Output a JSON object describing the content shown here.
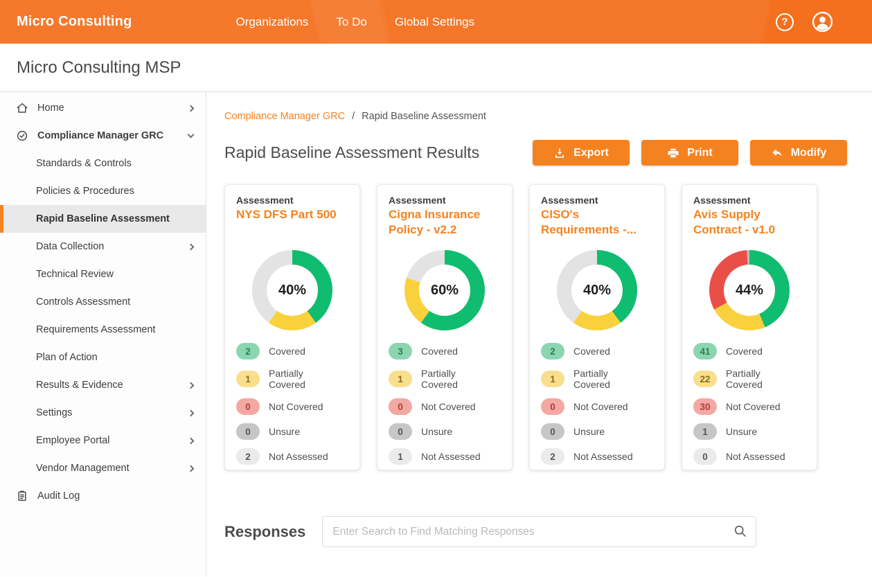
{
  "colors": {
    "topbar_bg": "#F4701E",
    "accent": "#F58220",
    "segment_colors": {
      "covered": "#10BC6F",
      "partially_covered": "#F8D13C",
      "not_covered": "#E94F47",
      "unsure": "#BDBDBD",
      "not_assessed": "#E3E3E3"
    },
    "badge_colors": {
      "covered": {
        "bg": "#8AD6B0",
        "fg": "#2E7D54"
      },
      "partially_covered": {
        "bg": "#F7DF8B",
        "fg": "#8A6D1E"
      },
      "not_covered": {
        "bg": "#F3A8A2",
        "fg": "#AE3F35"
      },
      "unsure": {
        "bg": "#C6C6C6",
        "fg": "#565656"
      },
      "not_assessed": {
        "bg": "#EBEBEB",
        "fg": "#565656"
      }
    }
  },
  "topbar": {
    "brand": "Micro Consulting",
    "help_label": "?",
    "nav": [
      {
        "label": "Organizations"
      },
      {
        "label": "To Do"
      },
      {
        "label": "Global Settings"
      }
    ]
  },
  "header": {
    "title": "Micro Consulting MSP"
  },
  "sidebar": {
    "items": [
      {
        "label": "Home",
        "icon": "home",
        "chevron": "right",
        "level": 0
      },
      {
        "label": "Compliance Manager GRC",
        "icon": "check-circle",
        "chevron": "down",
        "level": 0,
        "bold": true
      },
      {
        "label": "Standards & Controls",
        "level": 1
      },
      {
        "label": "Policies & Procedures",
        "level": 1
      },
      {
        "label": "Rapid Baseline Assessment",
        "level": 1,
        "selected": true
      },
      {
        "label": "Data Collection",
        "level": 1,
        "chevron": "right"
      },
      {
        "label": "Technical Review",
        "level": 1
      },
      {
        "label": "Controls Assessment",
        "level": 1
      },
      {
        "label": "Requirements Assessment",
        "level": 1
      },
      {
        "label": "Plan of Action",
        "level": 1
      },
      {
        "label": "Results & Evidence",
        "level": 1,
        "chevron": "right"
      },
      {
        "label": "Settings",
        "level": 1,
        "chevron": "right"
      },
      {
        "label": "Employee Portal",
        "level": 1,
        "chevron": "right"
      },
      {
        "label": "Vendor Management",
        "level": 1,
        "chevron": "right"
      },
      {
        "label": "Audit Log",
        "icon": "audit",
        "level": 0
      }
    ]
  },
  "breadcrumb": {
    "parent": "Compliance Manager GRC",
    "separator": "/",
    "current": "Rapid Baseline Assessment"
  },
  "page": {
    "title": "Rapid Baseline Assessment Results",
    "buttons": [
      {
        "label": "Export",
        "icon": "download-icon"
      },
      {
        "label": "Print",
        "icon": "print-icon"
      },
      {
        "label": "Modify",
        "icon": "undo-icon"
      }
    ]
  },
  "assessments": {
    "card_label": "Assessment",
    "cards": [
      {
        "title": "NYS DFS Part 500",
        "percent": "40%",
        "stats": [
          {
            "key": "covered",
            "label": "Covered",
            "value": 2
          },
          {
            "key": "partially_covered",
            "label": "Partially Covered",
            "value": 1
          },
          {
            "key": "not_covered",
            "label": "Not Covered",
            "value": 0
          },
          {
            "key": "unsure",
            "label": "Unsure",
            "value": 0
          },
          {
            "key": "not_assessed",
            "label": "Not Assessed",
            "value": 2
          }
        ]
      },
      {
        "title": "Cigna Insurance Policy - v2.2",
        "percent": "60%",
        "stats": [
          {
            "key": "covered",
            "label": "Covered",
            "value": 3
          },
          {
            "key": "partially_covered",
            "label": "Partially Covered",
            "value": 1
          },
          {
            "key": "not_covered",
            "label": "Not Covered",
            "value": 0
          },
          {
            "key": "unsure",
            "label": "Unsure",
            "value": 0
          },
          {
            "key": "not_assessed",
            "label": "Not Assessed",
            "value": 1
          }
        ]
      },
      {
        "title": "CISO's Requirements -...",
        "percent": "40%",
        "stats": [
          {
            "key": "covered",
            "label": "Covered",
            "value": 2
          },
          {
            "key": "partially_covered",
            "label": "Partially Covered",
            "value": 1
          },
          {
            "key": "not_covered",
            "label": "Not Covered",
            "value": 0
          },
          {
            "key": "unsure",
            "label": "Unsure",
            "value": 0
          },
          {
            "key": "not_assessed",
            "label": "Not Assessed",
            "value": 2
          }
        ]
      },
      {
        "title": "Avis Supply Contract - v1.0",
        "percent": "44%",
        "stats": [
          {
            "key": "covered",
            "label": "Covered",
            "value": 41
          },
          {
            "key": "partially_covered",
            "label": "Partially Covered",
            "value": 22
          },
          {
            "key": "not_covered",
            "label": "Not Covered",
            "value": 30
          },
          {
            "key": "unsure",
            "label": "Unsure",
            "value": 1
          },
          {
            "key": "not_assessed",
            "label": "Not Assessed",
            "value": 0
          }
        ]
      }
    ]
  },
  "responses": {
    "title": "Responses",
    "search_placeholder": "Enter Search to Find Matching Responses"
  }
}
